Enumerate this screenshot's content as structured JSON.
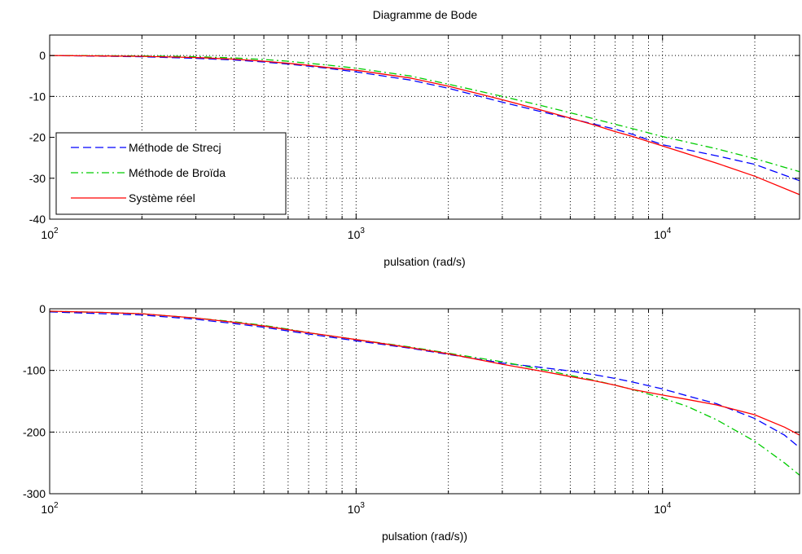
{
  "figure_title": "Diagramme de Bode",
  "colors": {
    "strecj": "#0000ff",
    "broida": "#00cc00",
    "reel": "#ff0000"
  },
  "chart_data": [
    {
      "type": "line",
      "title": "Diagramme de Bode",
      "xlabel": "pulsation (rad/s)",
      "ylabel": "",
      "xscale": "log",
      "xlim": [
        100,
        28000
      ],
      "ylim": [
        -40,
        5
      ],
      "yticks": [
        0,
        -10,
        -20,
        -30,
        -40
      ],
      "xtick_labels": [
        {
          "x": 100,
          "base": "10",
          "exp": "2"
        },
        {
          "x": 1000,
          "base": "10",
          "exp": "3"
        },
        {
          "x": 10000,
          "base": "10",
          "exp": "4"
        }
      ],
      "grid": true,
      "legend": "bottom-left",
      "series": [
        {
          "name": "Méthode de Strecj",
          "style": "dashed",
          "x": [
            100,
            200,
            300,
            400,
            500,
            600,
            700,
            800,
            1000,
            1500,
            2000,
            3000,
            4000,
            5000,
            6000,
            7000,
            8000,
            10000,
            15000,
            20000,
            28000
          ],
          "y": [
            0,
            -0.3,
            -0.7,
            -1.1,
            -1.6,
            -2.1,
            -2.6,
            -3.1,
            -4.0,
            -6.0,
            -8.0,
            -11.4,
            -13.7,
            -15.4,
            -16.8,
            -18.0,
            -19.3,
            -21.8,
            -24.5,
            -26.6,
            -30.6
          ]
        },
        {
          "name": "Méthode de Broïda",
          "style": "dashdot",
          "x": [
            100,
            200,
            300,
            400,
            500,
            600,
            700,
            800,
            1000,
            1500,
            2000,
            3000,
            4000,
            5000,
            6000,
            7000,
            8000,
            10000,
            15000,
            20000,
            28000
          ],
          "y": [
            0,
            -0.1,
            -0.3,
            -0.6,
            -1.0,
            -1.4,
            -1.9,
            -2.3,
            -3.1,
            -5.0,
            -7.0,
            -10.0,
            -12.2,
            -14.0,
            -15.5,
            -16.8,
            -17.9,
            -19.8,
            -22.8,
            -25.2,
            -28.4
          ]
        },
        {
          "name": "Système réel",
          "style": "solid",
          "x": [
            100,
            200,
            300,
            400,
            500,
            600,
            700,
            800,
            1000,
            1500,
            2000,
            3000,
            4000,
            5000,
            6000,
            7000,
            8000,
            10000,
            15000,
            20000,
            28000
          ],
          "y": [
            0,
            -0.2,
            -0.5,
            -0.9,
            -1.4,
            -1.9,
            -2.4,
            -2.9,
            -3.6,
            -5.5,
            -7.5,
            -10.8,
            -13.3,
            -15.3,
            -17.0,
            -18.6,
            -19.8,
            -22.1,
            -26.3,
            -29.5,
            -34.0
          ]
        }
      ]
    },
    {
      "type": "line",
      "title": "",
      "xlabel": "pulsation (rad/s))",
      "ylabel": "",
      "xscale": "log",
      "xlim": [
        100,
        28000
      ],
      "ylim": [
        -300,
        0
      ],
      "yticks": [
        0,
        -100,
        -200,
        -300
      ],
      "xtick_labels": [
        {
          "x": 100,
          "base": "10",
          "exp": "2"
        },
        {
          "x": 1000,
          "base": "10",
          "exp": "3"
        },
        {
          "x": 10000,
          "base": "10",
          "exp": "4"
        }
      ],
      "grid": true,
      "legend": "none",
      "series": [
        {
          "name": "Méthode de Strecj",
          "style": "dashed",
          "x": [
            100,
            150,
            200,
            300,
            400,
            500,
            600,
            700,
            800,
            1000,
            1500,
            2000,
            3000,
            4000,
            5000,
            6000,
            7000,
            8000,
            10000,
            12000,
            15000,
            20000,
            25000,
            28000
          ],
          "y": [
            -5,
            -8,
            -10,
            -17,
            -24,
            -30,
            -36,
            -41,
            -45,
            -52,
            -64,
            -74,
            -88,
            -95,
            -101,
            -107,
            -113,
            -119,
            -130,
            -141,
            -154,
            -178,
            -205,
            -225
          ]
        },
        {
          "name": "Méthode de Broïda",
          "style": "dashdot",
          "x": [
            100,
            150,
            200,
            300,
            400,
            500,
            600,
            700,
            800,
            1000,
            1500,
            2000,
            3000,
            4000,
            5000,
            6000,
            7000,
            8000,
            10000,
            12000,
            15000,
            20000,
            25000,
            28000
          ],
          "y": [
            -4,
            -6,
            -8,
            -15,
            -21,
            -27,
            -33,
            -39,
            -43,
            -50,
            -62,
            -72,
            -86,
            -98,
            -108,
            -116,
            -124,
            -131,
            -145,
            -158,
            -180,
            -215,
            -250,
            -270
          ]
        },
        {
          "name": "Système réel",
          "style": "solid",
          "x": [
            100,
            150,
            200,
            300,
            400,
            500,
            600,
            700,
            800,
            1000,
            1500,
            2000,
            3000,
            4000,
            5000,
            6000,
            7000,
            8000,
            10000,
            12000,
            15000,
            20000,
            25000,
            28000
          ],
          "y": [
            -4,
            -6,
            -8,
            -15,
            -22,
            -28,
            -34,
            -39,
            -43,
            -50,
            -63,
            -73,
            -90,
            -101,
            -110,
            -117,
            -124,
            -131,
            -140,
            -147,
            -156,
            -172,
            -192,
            -205
          ]
        }
      ]
    }
  ]
}
